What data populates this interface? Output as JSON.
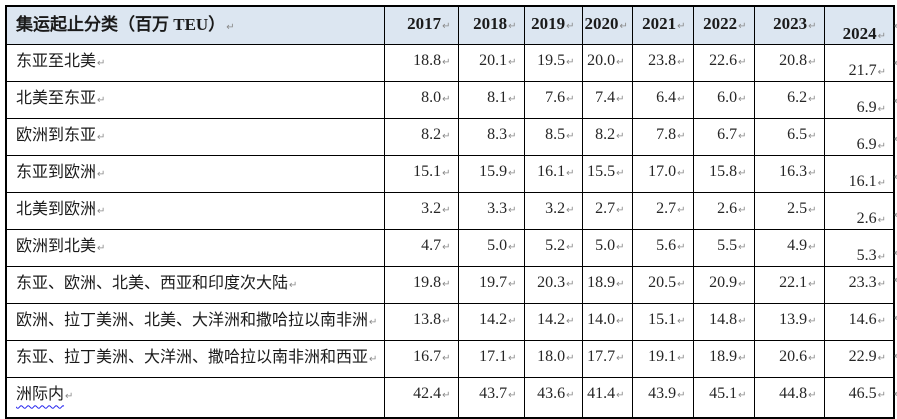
{
  "table": {
    "header": {
      "label": "集运起止分类（百万 TEU）",
      "years": [
        "2017",
        "2018",
        "2019",
        "2020",
        "2021",
        "2022",
        "2023",
        "2024"
      ]
    },
    "rows": [
      {
        "label": "东亚至北美",
        "values": [
          "18.8",
          "20.1",
          "19.5",
          "20.0",
          "23.8",
          "22.6",
          "20.8",
          "21.7"
        ],
        "grammar_underline": false
      },
      {
        "label": "北美至东亚",
        "values": [
          "8.0",
          "8.1",
          "7.6",
          "7.4",
          "6.4",
          "6.0",
          "6.2",
          "6.9"
        ],
        "grammar_underline": false
      },
      {
        "label": "欧洲到东亚",
        "values": [
          "8.2",
          "8.3",
          "8.5",
          "8.2",
          "7.8",
          "6.7",
          "6.5",
          "6.9"
        ],
        "grammar_underline": false
      },
      {
        "label": "东亚到欧洲",
        "values": [
          "15.1",
          "15.9",
          "16.1",
          "15.5",
          "17.0",
          "15.8",
          "16.3",
          "16.1"
        ],
        "grammar_underline": false
      },
      {
        "label": "北美到欧洲",
        "values": [
          "3.2",
          "3.3",
          "3.2",
          "2.7",
          "2.7",
          "2.6",
          "2.5",
          "2.6"
        ],
        "grammar_underline": false
      },
      {
        "label": "欧洲到北美",
        "values": [
          "4.7",
          "5.0",
          "5.2",
          "5.0",
          "5.6",
          "5.5",
          "4.9",
          "5.3"
        ],
        "grammar_underline": false
      },
      {
        "label": "东亚、欧洲、北美、西亚和印度次大陆",
        "values": [
          "19.8",
          "19.7",
          "20.3",
          "18.9",
          "20.5",
          "20.9",
          "22.1",
          "23.3"
        ],
        "grammar_underline": false
      },
      {
        "label": "欧洲、拉丁美洲、北美、大洋洲和撒哈拉以南非洲",
        "values": [
          "13.8",
          "14.2",
          "14.2",
          "14.0",
          "15.1",
          "14.8",
          "13.9",
          "14.6"
        ],
        "grammar_underline": false
      },
      {
        "label": "东亚、拉丁美洲、大洋洲、撒哈拉以南非洲和西亚",
        "values": [
          "16.7",
          "17.1",
          "18.0",
          "17.7",
          "19.1",
          "18.9",
          "20.6",
          "22.9"
        ],
        "grammar_underline": false
      },
      {
        "label": "洲际内",
        "values": [
          "42.4",
          "43.7",
          "43.6",
          "41.4",
          "43.9",
          "45.1",
          "44.8",
          "46.5"
        ],
        "grammar_underline": true
      }
    ],
    "marks": {
      "paragraph_mark": "↵"
    },
    "low_2024_row_count": 6,
    "colors": {
      "header_bg": "#dce6f1",
      "border": "#000000",
      "grammar_wave": "#2222ee",
      "paragraph_mark": "#8a8a8a"
    }
  }
}
